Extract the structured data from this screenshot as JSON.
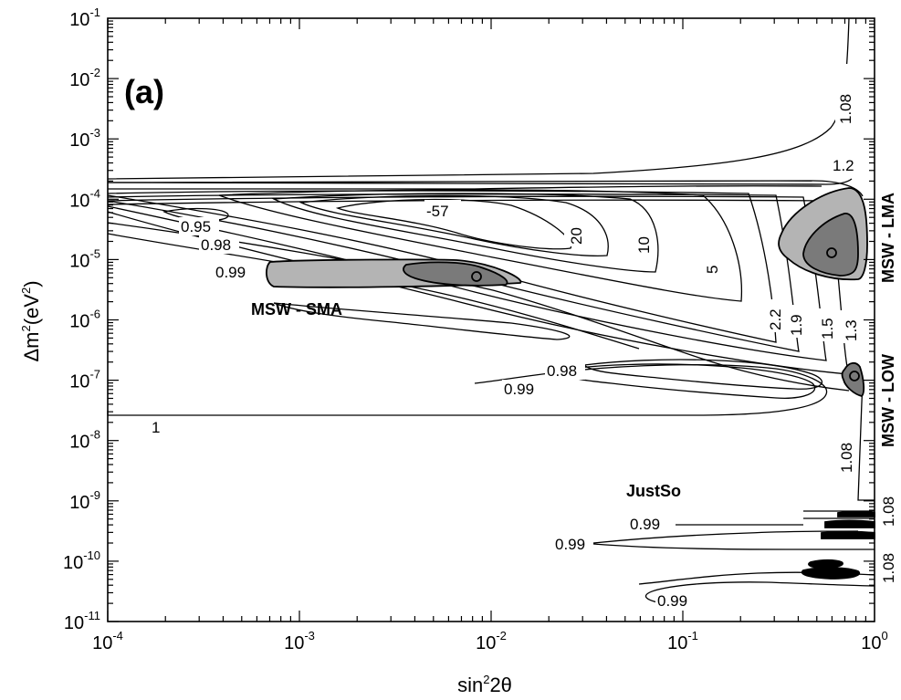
{
  "chart_data": {
    "type": "contour",
    "panel_label": "(a)",
    "xlabel": {
      "base": "sin",
      "sup": "2",
      "tail": "2θ"
    },
    "ylabel": {
      "pre": "Δm",
      "sup1": "2",
      "mid": "(eV",
      "sup2": "2",
      "post": ")"
    },
    "x_scale": "log",
    "y_scale": "log",
    "xlim": [
      0.0001,
      1
    ],
    "ylim": [
      1e-11,
      0.1
    ],
    "x_ticks": [
      {
        "base": "10",
        "exp": "-4"
      },
      {
        "base": "10",
        "exp": "-3"
      },
      {
        "base": "10",
        "exp": "-2"
      },
      {
        "base": "10",
        "exp": "-1"
      },
      {
        "base": "10",
        "exp": "0"
      }
    ],
    "x_tick_values": [
      -4,
      -3,
      -2,
      -1,
      0
    ],
    "y_ticks": [
      {
        "base": "10",
        "exp": "-1"
      },
      {
        "base": "10",
        "exp": "-2"
      },
      {
        "base": "10",
        "exp": "-3"
      },
      {
        "base": "10",
        "exp": "-4"
      },
      {
        "base": "10",
        "exp": "-5"
      },
      {
        "base": "10",
        "exp": "-6"
      },
      {
        "base": "10",
        "exp": "-7"
      },
      {
        "base": "10",
        "exp": "-8"
      },
      {
        "base": "10",
        "exp": "-9"
      },
      {
        "base": "10",
        "exp": "-10"
      },
      {
        "base": "10",
        "exp": "-11"
      }
    ],
    "y_tick_values": [
      -1,
      -2,
      -3,
      -4,
      -5,
      -6,
      -7,
      -8,
      -9,
      -10,
      -11
    ],
    "contour_labels": [
      "1.08",
      "1.2",
      "-57",
      "20",
      "10",
      "5",
      "2.2",
      "1.9",
      "1.5",
      "1.3",
      "0.95",
      "0.98",
      "0.99",
      "0.98",
      "0.99",
      "1",
      "1.08",
      "1.08",
      "0.99",
      "0.99",
      "1.08",
      "0.99"
    ],
    "regions": [
      {
        "name": "MSW - SMA",
        "best_fit": [
          0.0085,
          5e-06
        ]
      },
      {
        "name": "MSW - LMA",
        "best_fit": [
          0.6,
          1.2e-05
        ]
      },
      {
        "name": "MSW - LOW",
        "best_fit": [
          0.8,
          1.1e-07
        ]
      },
      {
        "name": "JustSo",
        "best_fit": null
      }
    ],
    "colors": {
      "region_light": "#b4b4b4",
      "region_dark": "#7a7a7a"
    },
    "grid": false,
    "legend": "none"
  }
}
